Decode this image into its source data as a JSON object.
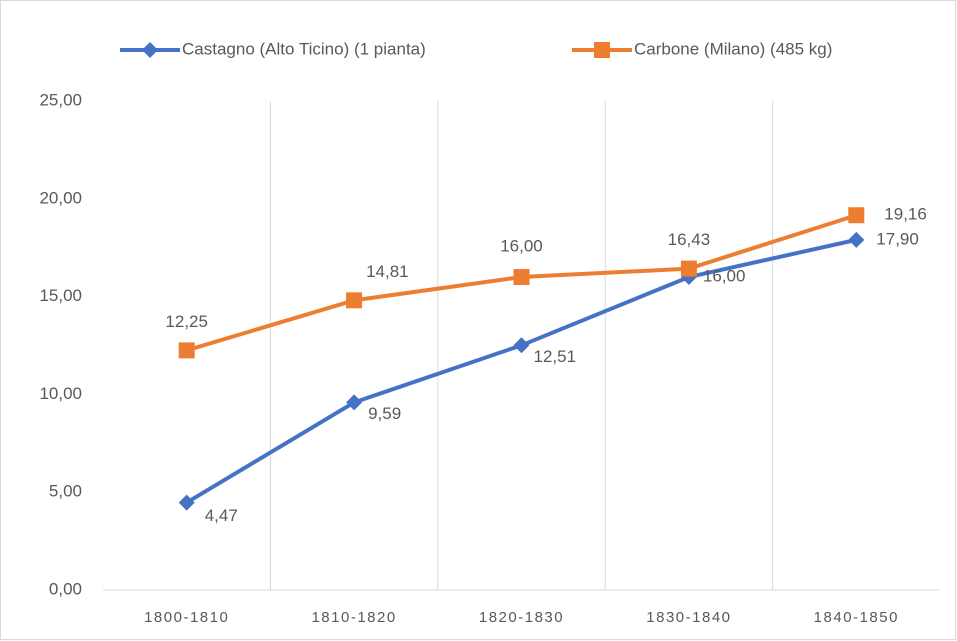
{
  "chart_data": {
    "type": "line",
    "categories": [
      "1800-1810",
      "1810-1820",
      "1820-1830",
      "1830-1840",
      "1840-1850"
    ],
    "series": [
      {
        "name": "Castagno (Alto Ticino) (1 pianta)",
        "color": "#4472c4",
        "marker": "diamond",
        "values": [
          4.47,
          9.59,
          12.51,
          16.0,
          17.9
        ],
        "value_labels": [
          "4,47",
          "9,59",
          "12,51",
          "16,00",
          "17,90"
        ]
      },
      {
        "name": "Carbone (Milano) (485 kg)",
        "color": "#ed7d31",
        "marker": "square",
        "values": [
          12.25,
          14.81,
          16.0,
          16.43,
          19.16
        ],
        "value_labels": [
          "12,25",
          "14,81",
          "16,00",
          "16,43",
          "19,16"
        ]
      }
    ],
    "ylim": [
      0,
      25
    ],
    "yticks": [
      {
        "value": 0,
        "label": "0,00"
      },
      {
        "value": 5,
        "label": "5,00"
      },
      {
        "value": 10,
        "label": "10,00"
      },
      {
        "value": 15,
        "label": "15,00"
      },
      {
        "value": 20,
        "label": "20,00"
      },
      {
        "value": 25,
        "label": "25,00"
      }
    ],
    "grid": "vertical",
    "legend": "top"
  }
}
